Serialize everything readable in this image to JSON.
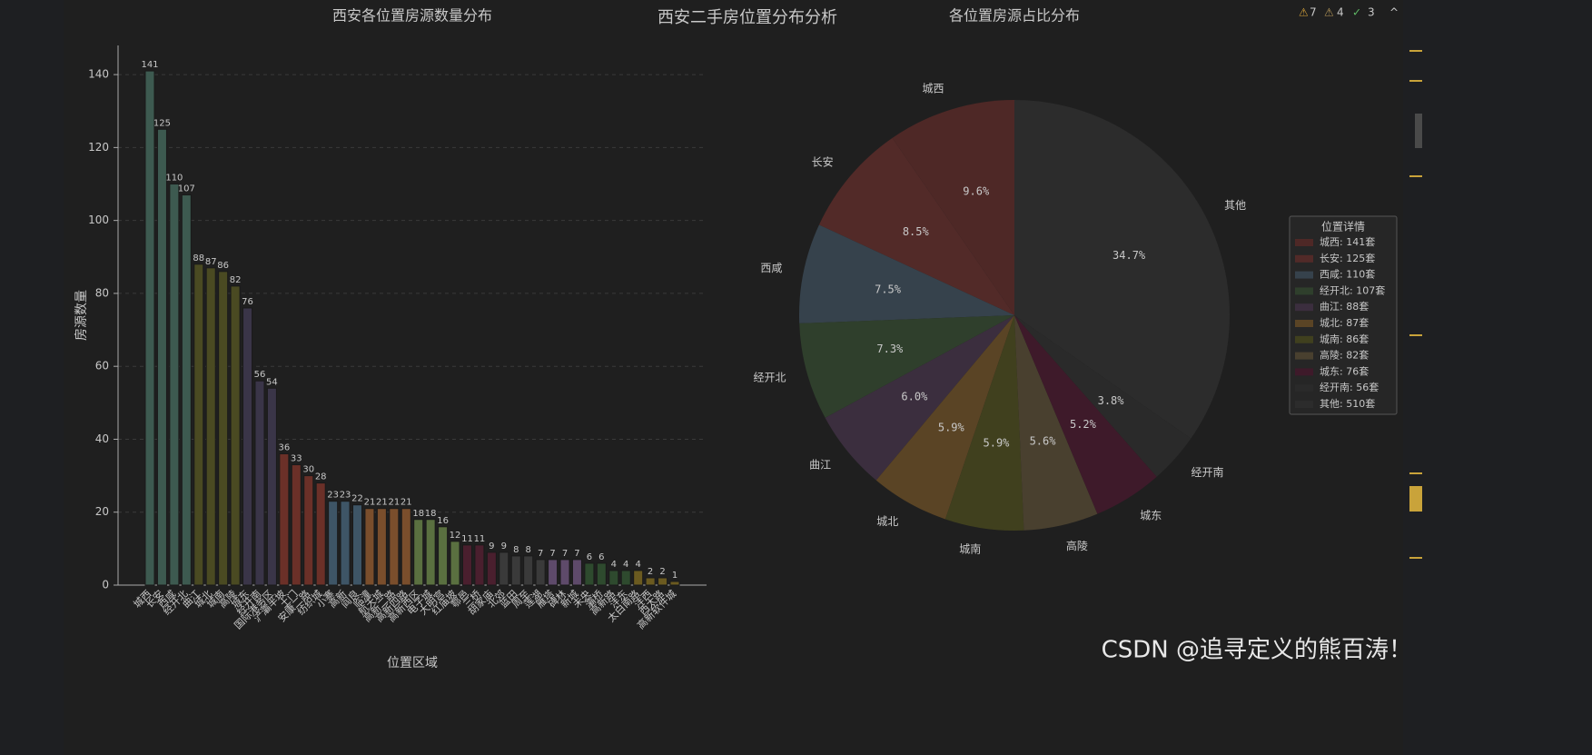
{
  "figure_title": "西安二手房位置分布分析",
  "toolbar": {
    "warnings": "7",
    "weak_warnings": "4",
    "checks": "3"
  },
  "watermark": "CSDN @追寻定义的熊百涛！",
  "chart_data": [
    {
      "type": "bar",
      "title": "西安各位置房源数量分布",
      "x_label": "位置区域",
      "y_label": "房源数量",
      "categories": [
        "城西",
        "长安",
        "西咸",
        "经开北",
        "曲江",
        "城北",
        "城南",
        "高陵",
        "城东",
        "经开南",
        "国际港务区",
        "浐灞半坡",
        "土门",
        "安康二路",
        "纺织城",
        "小寨",
        "高新",
        "阎良",
        "临潼",
        "航天城",
        "高新二路",
        "高新四路",
        "高新西区",
        "电子城",
        "大明宫",
        "红庙坡",
        "鄠邑",
        "三桥",
        "胡家庙",
        "北郊",
        "蓝田",
        "周至",
        "莲湖",
        "雁塔",
        "碑林",
        "新城",
        "未央",
        "灞桥",
        "高新路",
        "沣东",
        "太白南路",
        "沣西",
        "西太路",
        "高新软件城"
      ],
      "values": [
        141,
        125,
        110,
        107,
        88,
        87,
        86,
        82,
        76,
        56,
        54,
        36,
        33,
        30,
        28,
        23,
        23,
        22,
        21,
        21,
        21,
        21,
        18,
        18,
        16,
        12,
        11,
        11,
        9,
        9,
        8,
        8,
        7,
        7,
        7,
        7,
        6,
        6,
        4,
        4,
        4,
        2,
        2,
        1
      ],
      "colors": [
        "#3d5a50",
        "#3d5a50",
        "#3d5a50",
        "#3d5a50",
        "#4a4a22",
        "#4a4a22",
        "#4a4a22",
        "#4a4a22",
        "#3a3548",
        "#3a3548",
        "#3a3548",
        "#6b3028",
        "#6b3028",
        "#6b3028",
        "#6b3028",
        "#3e5566",
        "#3e5566",
        "#3e5566",
        "#7a4e2c",
        "#7a4e2c",
        "#7a4e2c",
        "#7a4e2c",
        "#5a7040",
        "#5a7040",
        "#5a7040",
        "#5a7040",
        "#4a1f2e",
        "#4a1f2e",
        "#4a1f2e",
        "#3a3a3a",
        "#3a3a3a",
        "#3a3a3a",
        "#3a3a3a",
        "#5e4a6a",
        "#5e4a6a",
        "#5e4a6a",
        "#2e4a2e",
        "#2e4a2e",
        "#2e4a2e",
        "#2e4a2e",
        "#6b5a20",
        "#6b5a20",
        "#6b5a20",
        "#6b5a20"
      ],
      "ylim": [
        0,
        148
      ],
      "yticks": [
        0,
        20,
        40,
        60,
        80,
        100,
        120,
        140
      ],
      "grid": true
    },
    {
      "type": "pie",
      "title": "各位置房源占比分布",
      "categories": [
        "城西",
        "长安",
        "西咸",
        "经开北",
        "曲江",
        "城北",
        "城南",
        "高陵",
        "城东",
        "经开南",
        "其他"
      ],
      "values": [
        9.6,
        8.5,
        7.5,
        7.3,
        6.0,
        5.9,
        5.9,
        5.6,
        5.2,
        3.8,
        34.7
      ],
      "value_labels": [
        "9.6%",
        "8.5%",
        "7.5%",
        "7.3%",
        "6.0%",
        "5.9%",
        "5.9%",
        "5.6%",
        "5.2%",
        "3.8%",
        "34.7%"
      ],
      "colors": [
        "#4e2826",
        "#522a28",
        "#36424c",
        "#2f3f2c",
        "#3b2e3e",
        "#5a4425",
        "#40401e",
        "#49402f",
        "#3e1a2a",
        "#2a2a2a",
        "#2c2c2c"
      ],
      "legend_title": "位置详情",
      "legend": [
        "城西: 141套",
        "长安: 125套",
        "西咸: 110套",
        "经开北: 107套",
        "曲江: 88套",
        "城北: 87套",
        "城南: 86套",
        "高陵: 82套",
        "城东: 76套",
        "经开南: 56套",
        "其他: 510套"
      ],
      "legend_position": "right"
    }
  ]
}
